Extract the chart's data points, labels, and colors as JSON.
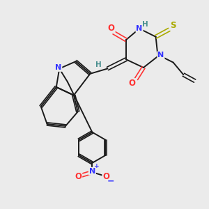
{
  "bg_color": "#ebebeb",
  "bond_color": "#1a1a1a",
  "atom_colors": {
    "O": "#ff3333",
    "N": "#3333ff",
    "S": "#aaaa00",
    "H": "#4a9090",
    "C": "#1a1a1a",
    "plus": "#3333ff",
    "minus": "#3333ff"
  },
  "fig_width": 3.0,
  "fig_height": 3.0,
  "dpi": 100
}
